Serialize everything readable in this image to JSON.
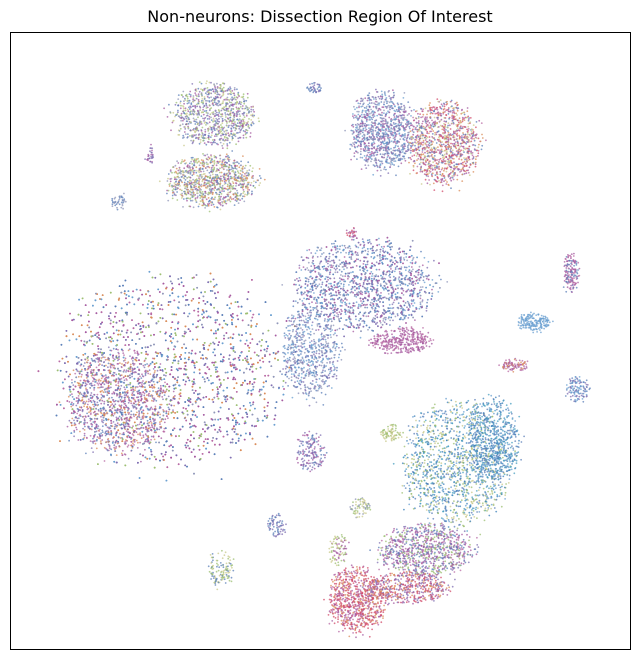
{
  "chart_data": {
    "type": "scatter",
    "title": "Non-neurons: Dissection Region Of Interest",
    "xlabel": "",
    "ylabel": "",
    "axes_ticks": false,
    "grid": false,
    "legend": "none",
    "xlim": [
      0,
      100
    ],
    "ylim": [
      0,
      100
    ],
    "palette": [
      "#5b7fb8",
      "#7f6fb2",
      "#a45aa0",
      "#6a9fd0",
      "#9cbf72",
      "#c9c98c",
      "#d98c5a",
      "#d24b6a",
      "#4a9fc0",
      "#8f96b8",
      "#b86aa4",
      "#3a7fb8"
    ],
    "clusters": [
      {
        "name": "c1",
        "cx": 33.0,
        "cy": 86.5,
        "rx": 6.3,
        "ry": 4.8,
        "n": 900,
        "colors": [
          0,
          1,
          2,
          4,
          5,
          9
        ]
      },
      {
        "name": "c2",
        "cx": 32.5,
        "cy": 75.8,
        "rx": 7.0,
        "ry": 4.0,
        "n": 1000,
        "colors": [
          0,
          2,
          4,
          5,
          6,
          9
        ]
      },
      {
        "name": "c3",
        "cx": 60.0,
        "cy": 84.0,
        "rx": 5.0,
        "ry": 6.0,
        "n": 1000,
        "colors": [
          0,
          3,
          1,
          9,
          2
        ]
      },
      {
        "name": "c4",
        "cx": 70.0,
        "cy": 82.0,
        "rx": 5.5,
        "ry": 6.4,
        "n": 1100,
        "colors": [
          6,
          2,
          7,
          0,
          10,
          5
        ]
      },
      {
        "name": "c5",
        "cx": 26.0,
        "cy": 45.0,
        "rx": 18.0,
        "ry": 14.5,
        "n": 4600,
        "colors": [
          0,
          1,
          2,
          3,
          9,
          10,
          6,
          4
        ]
      },
      {
        "name": "c6",
        "cx": 17.5,
        "cy": 40.0,
        "rx": 8.0,
        "ry": 8.0,
        "n": 1100,
        "colors": [
          2,
          10,
          1,
          6,
          0
        ]
      },
      {
        "name": "c7",
        "cx": 57.0,
        "cy": 59.0,
        "rx": 11.0,
        "ry": 7.0,
        "n": 2000,
        "colors": [
          0,
          1,
          3,
          9,
          2
        ]
      },
      {
        "name": "c8",
        "cx": 48.5,
        "cy": 48.0,
        "rx": 4.5,
        "ry": 7.0,
        "n": 650,
        "colors": [
          0,
          1,
          9,
          3
        ]
      },
      {
        "name": "c9",
        "cx": 63.0,
        "cy": 50.0,
        "rx": 5.0,
        "ry": 2.0,
        "n": 350,
        "colors": [
          2,
          10
        ]
      },
      {
        "name": "c10",
        "cx": 72.0,
        "cy": 30.0,
        "rx": 8.5,
        "ry": 9.5,
        "n": 1500,
        "colors": [
          4,
          5,
          3,
          8,
          0,
          11
        ]
      },
      {
        "name": "c11",
        "cx": 78.0,
        "cy": 34.0,
        "rx": 4.0,
        "ry": 6.5,
        "n": 600,
        "colors": [
          11,
          8,
          0,
          3
        ]
      },
      {
        "name": "c12",
        "cx": 67.0,
        "cy": 16.0,
        "rx": 7.5,
        "ry": 4.0,
        "n": 900,
        "colors": [
          1,
          4,
          2,
          0,
          10
        ]
      },
      {
        "name": "c13",
        "cx": 56.0,
        "cy": 8.0,
        "rx": 4.5,
        "ry": 5.0,
        "n": 800,
        "colors": [
          7,
          6,
          2,
          7,
          10
        ]
      },
      {
        "name": "c14",
        "cx": 64.0,
        "cy": 10.0,
        "rx": 7.0,
        "ry": 2.5,
        "n": 500,
        "colors": [
          2,
          7,
          6,
          1
        ]
      },
      {
        "name": "c15",
        "cx": 48.5,
        "cy": 32.0,
        "rx": 2.3,
        "ry": 3.0,
        "n": 160,
        "colors": [
          1,
          0,
          2
        ]
      },
      {
        "name": "c16",
        "cx": 34.0,
        "cy": 13.0,
        "rx": 2.0,
        "ry": 2.8,
        "n": 120,
        "colors": [
          4,
          5,
          0
        ]
      },
      {
        "name": "c17",
        "cx": 43.0,
        "cy": 20.0,
        "rx": 1.5,
        "ry": 1.8,
        "n": 70,
        "colors": [
          1,
          0
        ]
      },
      {
        "name": "c18",
        "cx": 84.5,
        "cy": 53.0,
        "rx": 2.5,
        "ry": 1.4,
        "n": 180,
        "colors": [
          3
        ]
      },
      {
        "name": "c19",
        "cx": 90.5,
        "cy": 61.0,
        "rx": 1.2,
        "ry": 3.0,
        "n": 160,
        "colors": [
          2,
          10,
          0
        ]
      },
      {
        "name": "c20",
        "cx": 91.5,
        "cy": 42.0,
        "rx": 1.8,
        "ry": 2.0,
        "n": 120,
        "colors": [
          0,
          1,
          3
        ]
      },
      {
        "name": "c21",
        "cx": 81.5,
        "cy": 46.0,
        "rx": 2.2,
        "ry": 1.0,
        "n": 100,
        "colors": [
          2,
          10,
          6
        ]
      },
      {
        "name": "c22",
        "cx": 49.0,
        "cy": 91.0,
        "rx": 1.4,
        "ry": 0.8,
        "n": 40,
        "colors": [
          1,
          0
        ]
      },
      {
        "name": "c23",
        "cx": 17.5,
        "cy": 72.5,
        "rx": 1.2,
        "ry": 1.3,
        "n": 40,
        "colors": [
          0,
          9
        ]
      },
      {
        "name": "c24",
        "cx": 22.5,
        "cy": 80.0,
        "rx": 0.7,
        "ry": 1.6,
        "n": 30,
        "colors": [
          1,
          2
        ]
      },
      {
        "name": "c25",
        "cx": 55.0,
        "cy": 67.5,
        "rx": 1.2,
        "ry": 0.8,
        "n": 25,
        "colors": [
          2,
          7
        ]
      },
      {
        "name": "c26",
        "cx": 61.5,
        "cy": 35.0,
        "rx": 1.8,
        "ry": 1.3,
        "n": 80,
        "colors": [
          5,
          4
        ]
      },
      {
        "name": "c27",
        "cx": 56.5,
        "cy": 23.0,
        "rx": 1.6,
        "ry": 1.6,
        "n": 70,
        "colors": [
          5,
          4,
          9
        ]
      },
      {
        "name": "c28",
        "cx": 53.0,
        "cy": 16.0,
        "rx": 1.5,
        "ry": 2.5,
        "n": 90,
        "colors": [
          4,
          5,
          2
        ]
      }
    ]
  }
}
